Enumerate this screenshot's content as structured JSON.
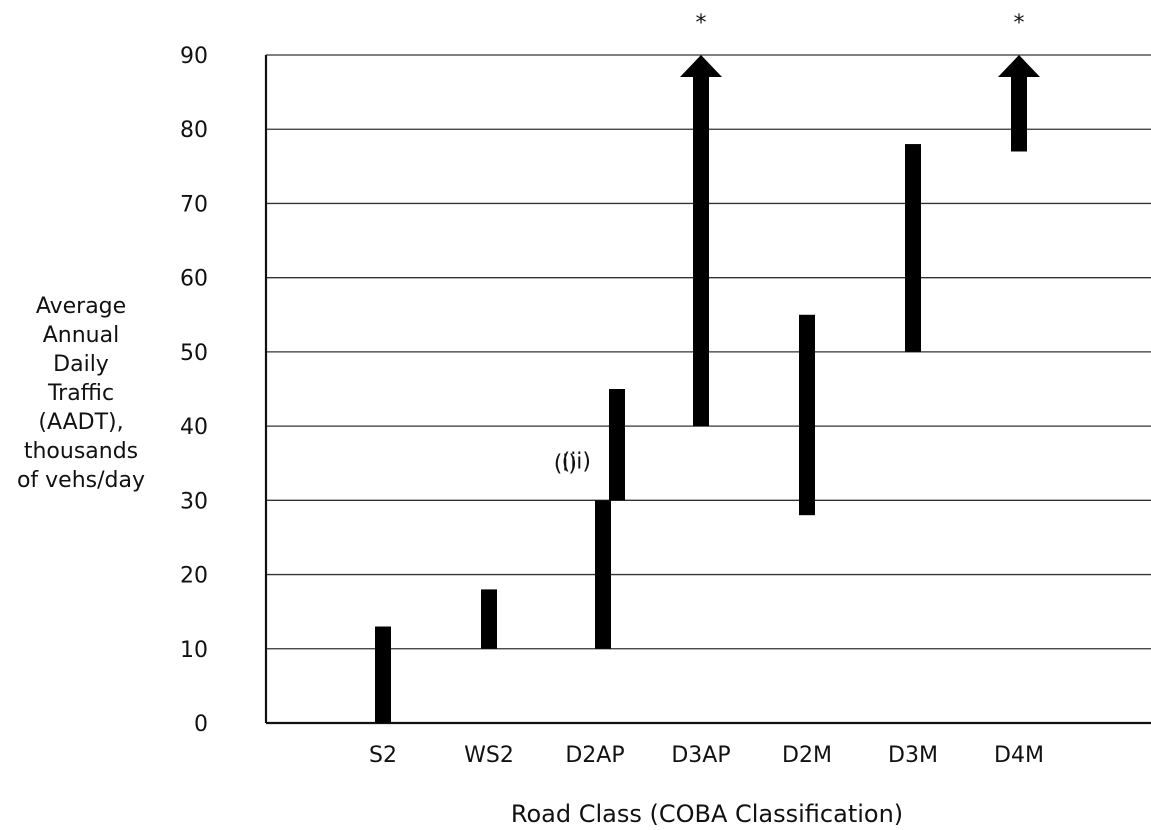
{
  "chart_data": {
    "type": "range-bar",
    "title": "",
    "xlabel": "Road Class (COBA Classification)",
    "ylabel_lines": [
      "Average",
      "Annual",
      "Daily",
      "Traffic",
      "(AADT),",
      "thousands",
      "of vehs/day"
    ],
    "ylim": [
      0,
      90
    ],
    "yticks": [
      0,
      10,
      20,
      30,
      40,
      50,
      60,
      70,
      80,
      90
    ],
    "grid": true,
    "categories": [
      "S2",
      "WS2",
      "D2AP",
      "D3AP",
      "D2M",
      "D3M",
      "D4M"
    ],
    "ranges": [
      {
        "category": "S2",
        "low": 0,
        "high": 13
      },
      {
        "category": "WS2",
        "low": 10,
        "high": 18
      },
      {
        "category": "D2AP",
        "low": 10,
        "high": 30,
        "label": "(i)"
      },
      {
        "category": "D2AP",
        "low": 30,
        "high": 45,
        "label": "(ii)"
      },
      {
        "category": "D3AP",
        "low": 40,
        "high": 90,
        "open_ended": true,
        "marker": "*"
      },
      {
        "category": "D2M",
        "low": 28,
        "high": 55
      },
      {
        "category": "D3M",
        "low": 50,
        "high": 78
      },
      {
        "category": "D4M",
        "low": 77,
        "high": 90,
        "open_ended": true,
        "marker": "*"
      }
    ]
  }
}
